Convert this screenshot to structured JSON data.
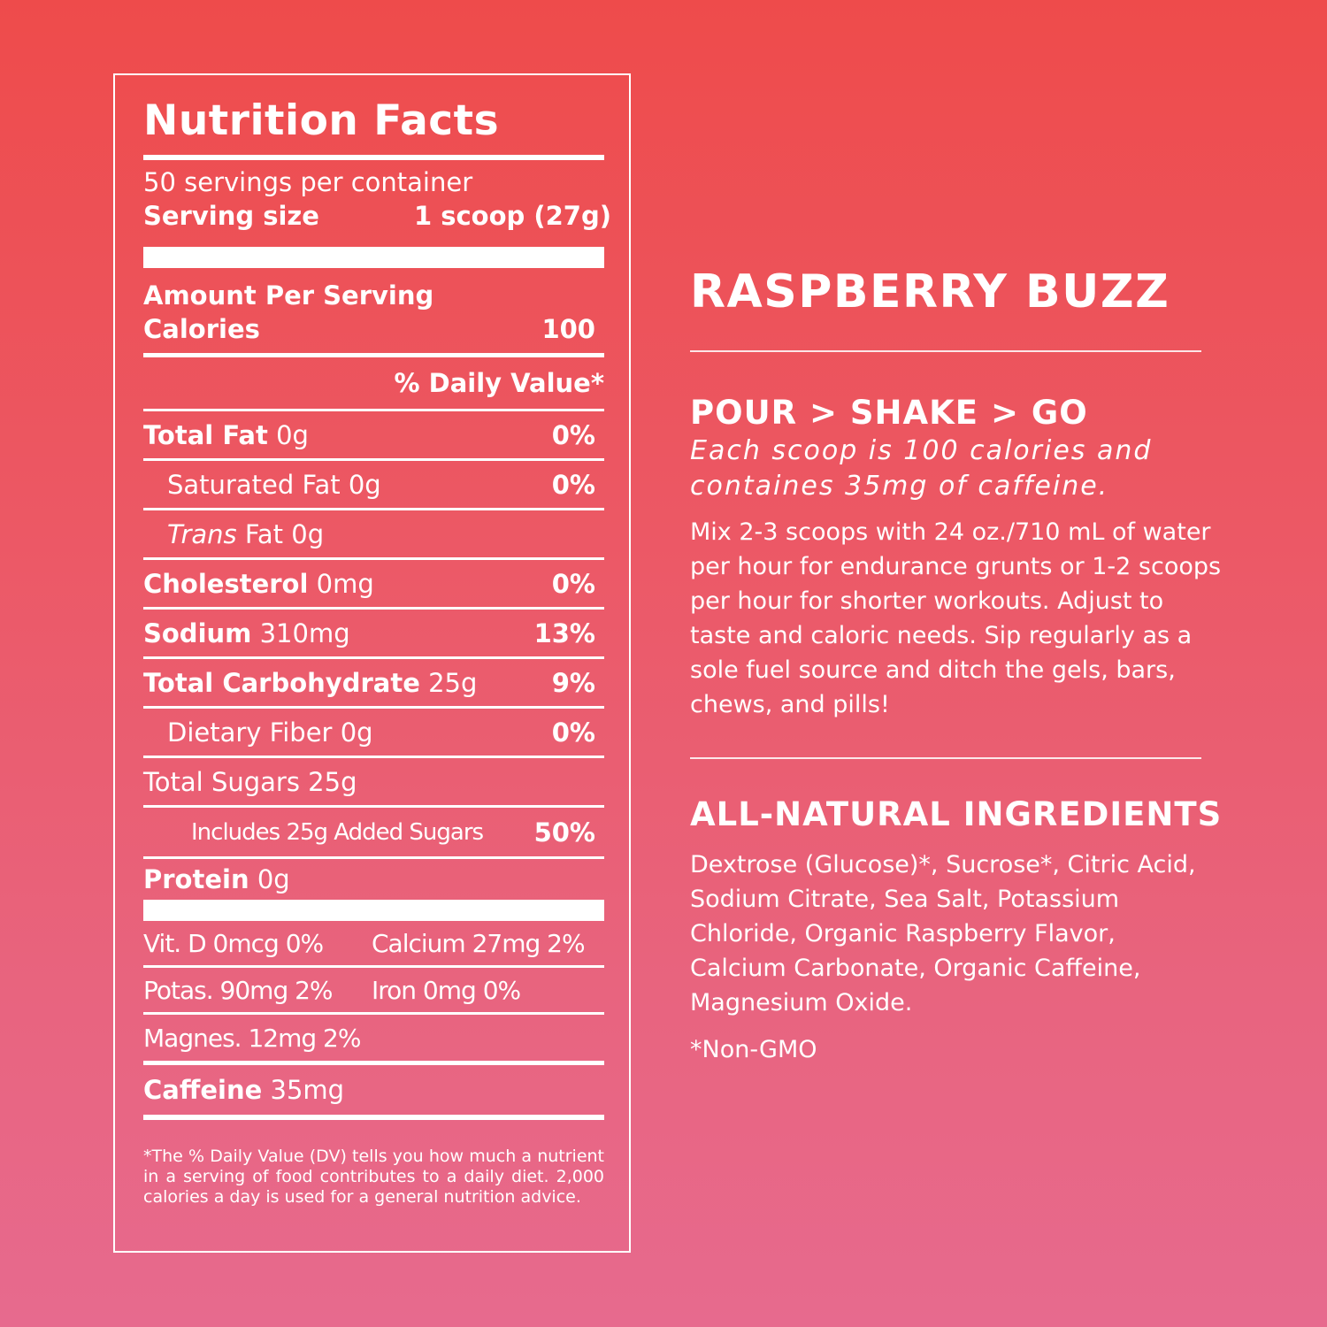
{
  "nutrition": {
    "title": "Nutrition Facts",
    "servings_per_container": "50 servings per container",
    "serving_size_label": "Serving size",
    "serving_size_value": "1 scoop (27g)",
    "amount_per_serving": "Amount Per Serving",
    "calories_label": "Calories",
    "calories_value": "100",
    "daily_value_header": "% Daily Value*",
    "rows": [
      {
        "bold": "Total Fat",
        "plain": " 0g",
        "dv": "0%"
      },
      {
        "bold": "",
        "plain": "Saturated Fat 0g",
        "dv": "0%"
      },
      {
        "italic": "Trans",
        "plain": " Fat 0g",
        "dv": ""
      },
      {
        "bold": "Cholesterol",
        "plain": " 0mg",
        "dv": "0%"
      },
      {
        "bold": "Sodium",
        "plain": " 310mg",
        "dv": "13%"
      },
      {
        "bold": "Total Carbohydrate",
        "plain": " 25g",
        "dv": "9%"
      },
      {
        "bold": "",
        "plain": "Dietary Fiber 0g",
        "dv": "0%"
      },
      {
        "bold": "",
        "plain": "Total Sugars 25g",
        "dv": ""
      },
      {
        "bold": "",
        "plain": "Includes 25g Added Sugars",
        "dv": "50%"
      },
      {
        "bold": "Protein",
        "plain": " 0g",
        "dv": ""
      }
    ],
    "vitamins": {
      "vit_d": "Vit. D 0mcg 0%",
      "calcium": "Calcium 27mg 2%",
      "potassium": "Potas.  90mg 2%",
      "iron": "Iron 0mg 0%",
      "magnesium": "Magnes. 12mg 2%"
    },
    "caffeine_label": "Caffeine",
    "caffeine_value": " 35mg",
    "footnote": "*The % Daily Value (DV) tells you how much a nutrient in a serving of food contributes to a daily diet. 2,000 calories a day is used for a general nutrition advice."
  },
  "product": {
    "name": "RASPBERRY BUZZ",
    "directions_heading": "POUR > SHAKE > GO",
    "directions_tagline": "Each scoop is 100 calories and containes 35mg of caffeine.",
    "directions_body": "Mix 2-3 scoops with 24 oz./710 mL of water per hour for endurance grunts or 1-2 scoops per hour for shorter workouts. Adjust to taste and caloric needs. Sip regularly as a sole fuel source and ditch the gels, bars, chews, and pills!",
    "ingredients_heading": "ALL-NATURAL INGREDIENTS",
    "ingredients_body": "Dextrose (Glucose)*, Sucrose*, Citric Acid, Sodium Citrate, Sea Salt, Potassium Chloride, Organic Raspberry Flavor, Calcium Carbonate, Organic Caffeine, Magnesium Oxide.",
    "non_gmo": "*Non-GMO"
  },
  "colors": {
    "background_top": "#ee4b4b",
    "background_bottom": "#e76a8e",
    "text": "#ffffff"
  }
}
